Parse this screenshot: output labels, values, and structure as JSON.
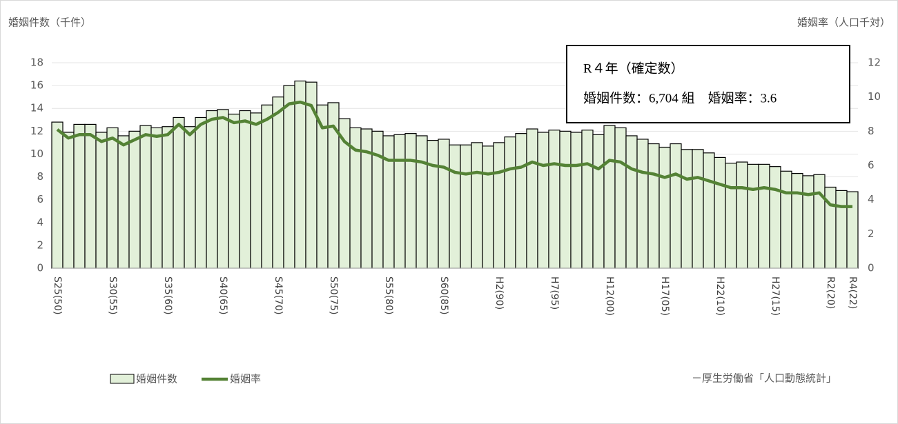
{
  "chart_data": {
    "type": "bar-line",
    "y_label": "婚姻件数（千件）",
    "y2_label": "婚姻率（人口千対）",
    "annotation": [
      "R４年（確定数）",
      "婚姻件数：6,704 組　婚姻率：3.6"
    ],
    "source": "－厚生労働省「人口動態統計」",
    "categories": [
      "S25(50)",
      null,
      null,
      null,
      null,
      "S30(55)",
      null,
      null,
      null,
      null,
      "S35(60)",
      null,
      null,
      null,
      null,
      "S40(65)",
      null,
      null,
      null,
      null,
      "S45(70)",
      null,
      null,
      null,
      null,
      "S50(75)",
      null,
      null,
      null,
      null,
      "S55(80)",
      null,
      null,
      null,
      null,
      "S60(85)",
      null,
      null,
      null,
      null,
      "H2(90)",
      null,
      null,
      null,
      null,
      "H7(95)",
      null,
      null,
      null,
      null,
      "H12(00)",
      null,
      null,
      null,
      null,
      "H17(05)",
      null,
      null,
      null,
      null,
      "H22(10)",
      null,
      null,
      null,
      null,
      "H27(15)",
      null,
      null,
      null,
      null,
      "R2(20)",
      null,
      "R4(22)"
    ],
    "series": [
      {
        "name": "婚姻件数",
        "type": "bar",
        "color": "#e2f0d9",
        "values": [
          12.8,
          11.9,
          12.6,
          12.6,
          11.9,
          12.3,
          11.6,
          12.0,
          12.5,
          12.3,
          12.4,
          13.2,
          12.4,
          13.2,
          13.8,
          13.9,
          13.5,
          13.8,
          13.6,
          14.3,
          15.0,
          16.0,
          16.4,
          16.3,
          14.3,
          14.5,
          13.1,
          12.3,
          12.2,
          12.0,
          11.6,
          11.7,
          11.8,
          11.6,
          11.2,
          11.3,
          10.8,
          10.8,
          11.0,
          10.7,
          11.0,
          11.5,
          11.8,
          12.2,
          11.9,
          12.1,
          12.0,
          11.9,
          12.1,
          11.7,
          12.5,
          12.3,
          11.6,
          11.3,
          10.9,
          10.6,
          10.9,
          10.4,
          10.4,
          10.1,
          9.7,
          9.2,
          9.3,
          9.1,
          9.1,
          8.9,
          8.5,
          8.3,
          8.1,
          8.2,
          7.1,
          6.8,
          6.7
        ]
      },
      {
        "name": "婚姻率",
        "type": "line",
        "axis": "y2",
        "color": "#548235",
        "values": [
          8.1,
          7.6,
          7.8,
          7.8,
          7.4,
          7.6,
          7.2,
          7.5,
          7.8,
          7.7,
          7.8,
          8.4,
          7.8,
          8.4,
          8.7,
          8.8,
          8.5,
          8.6,
          8.4,
          8.7,
          9.1,
          9.6,
          9.7,
          9.5,
          8.2,
          8.3,
          7.4,
          6.9,
          6.8,
          6.6,
          6.3,
          6.3,
          6.3,
          6.2,
          6.0,
          5.9,
          5.6,
          5.5,
          5.6,
          5.5,
          5.6,
          5.8,
          5.9,
          6.2,
          6.0,
          6.1,
          6.0,
          6.0,
          6.1,
          5.8,
          6.3,
          6.2,
          5.8,
          5.6,
          5.5,
          5.3,
          5.5,
          5.2,
          5.3,
          5.1,
          4.9,
          4.7,
          4.7,
          4.6,
          4.7,
          4.6,
          4.4,
          4.4,
          4.3,
          4.4,
          3.7,
          3.6,
          3.6
        ]
      }
    ],
    "ylim": [
      0,
      18
    ],
    "yticks": [
      0,
      2,
      4,
      6,
      8,
      10,
      12,
      14,
      16,
      18
    ],
    "y2lim": [
      0,
      12
    ],
    "y2ticks": [
      0,
      2,
      4,
      6,
      8,
      10,
      12
    ],
    "grid": true
  }
}
